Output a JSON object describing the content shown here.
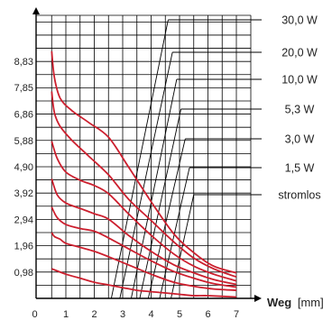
{
  "colors": {
    "curve": "#cc1f2e",
    "grid": "#000000",
    "text": "#222222"
  },
  "chart_data": {
    "type": "line",
    "xlabel_bold": "Weg",
    "xlabel_unit": "[mm]",
    "ylabel": "",
    "xlim": [
      0,
      7.3
    ],
    "ylim": [
      0,
      10.8
    ],
    "x_ticks": [
      0,
      1,
      2,
      3,
      4,
      5,
      6,
      7
    ],
    "x_tick_labels": [
      "0",
      "1",
      "2",
      "3",
      "4",
      "5",
      "6",
      "7"
    ],
    "y_ticks": [
      0.98,
      1.96,
      2.94,
      3.92,
      4.9,
      5.88,
      6.86,
      7.85,
      8.83
    ],
    "y_tick_labels": [
      "0,98",
      "1,96",
      "2,94",
      "3,92",
      "4,90",
      "5,88",
      "6,86",
      "7,85",
      "8,83"
    ],
    "grid": true,
    "power_labels": [
      "30,0 W",
      "20,0 W",
      "10,0 W",
      "5,3 W",
      "3,0 W",
      "1,5 W",
      "stromlos"
    ],
    "series": [
      {
        "x": [
          0.5,
          0.6,
          0.8,
          1.2,
          1.8,
          2.5,
          3.2,
          4.0,
          4.8,
          5.5,
          6.2,
          7.0
        ],
        "y": [
          9.2,
          8.2,
          7.45,
          7.0,
          6.55,
          6.0,
          4.9,
          3.6,
          2.4,
          1.7,
          1.2,
          0.95
        ]
      },
      {
        "x": [
          0.5,
          0.6,
          0.8,
          1.2,
          1.8,
          2.5,
          3.2,
          4.0,
          4.8,
          5.5,
          6.2,
          7.0
        ],
        "y": [
          7.7,
          6.9,
          6.4,
          5.9,
          5.3,
          4.6,
          3.7,
          2.9,
          2.1,
          1.5,
          1.1,
          0.8
        ]
      },
      {
        "x": [
          0.5,
          0.7,
          1.0,
          1.5,
          2.0,
          2.5,
          3.2,
          4.0,
          4.8,
          5.5,
          6.2,
          7.0
        ],
        "y": [
          5.85,
          5.2,
          4.7,
          4.4,
          4.2,
          3.9,
          3.15,
          2.35,
          1.65,
          1.2,
          0.9,
          0.65
        ]
      },
      {
        "x": [
          0.5,
          0.7,
          1.0,
          1.5,
          2.0,
          2.5,
          3.2,
          4.0,
          4.8,
          5.5,
          6.2,
          7.0
        ],
        "y": [
          4.45,
          3.85,
          3.55,
          3.35,
          3.15,
          2.95,
          2.35,
          1.75,
          1.25,
          0.95,
          0.7,
          0.52
        ]
      },
      {
        "x": [
          0.5,
          0.7,
          1.0,
          1.5,
          2.0,
          2.5,
          3.2,
          4.0,
          4.8,
          5.5,
          6.2,
          7.0
        ],
        "y": [
          3.4,
          3.0,
          2.75,
          2.6,
          2.5,
          2.25,
          1.85,
          1.4,
          1.0,
          0.75,
          0.55,
          0.42
        ]
      },
      {
        "x": [
          0.5,
          0.6,
          0.8,
          1.0,
          1.5,
          2.0,
          2.5,
          3.2,
          4.0,
          4.8,
          5.5,
          6.2,
          7.0
        ],
        "y": [
          2.45,
          2.3,
          2.2,
          2.05,
          1.9,
          1.75,
          1.55,
          1.25,
          0.9,
          0.6,
          0.45,
          0.35,
          0.3
        ]
      },
      {
        "x": [
          0.5,
          1.0,
          1.5,
          2.0,
          2.5,
          3.0,
          3.5,
          4.0,
          4.5,
          5.0,
          5.5,
          6.0,
          7.0
        ],
        "y": [
          1.1,
          0.9,
          0.75,
          0.6,
          0.5,
          0.4,
          0.3,
          0.25,
          0.2,
          0.15,
          0.1,
          0.1,
          0.05
        ]
      }
    ]
  }
}
